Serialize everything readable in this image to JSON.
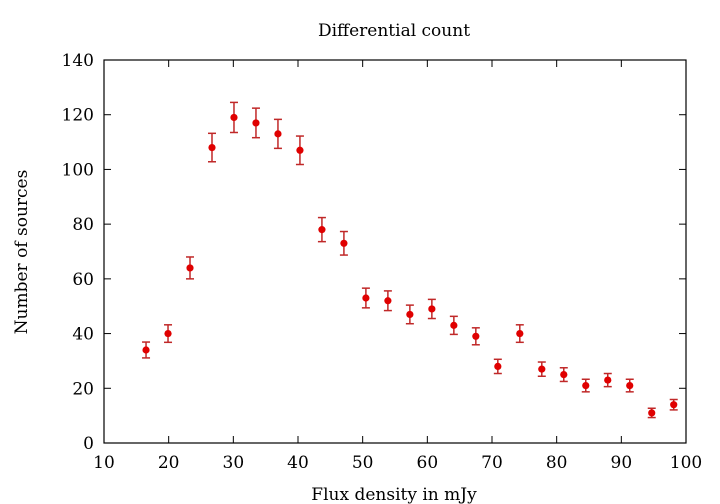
{
  "chart_data": {
    "type": "scatter",
    "title": "Differential count",
    "xlabel": "Flux density in mJy",
    "ylabel": "Number of sources",
    "xlim": [
      10,
      100
    ],
    "ylim": [
      0,
      140
    ],
    "xticks": [
      10,
      20,
      30,
      40,
      50,
      60,
      70,
      80,
      90,
      100
    ],
    "yticks": [
      0,
      20,
      40,
      60,
      80,
      100,
      120,
      140
    ],
    "grid": false,
    "legend": "none",
    "colors": {
      "point": "#e00000",
      "errorbar": "#c02828"
    },
    "x": [
      16.5,
      19.9,
      23.3,
      26.7,
      30.1,
      33.5,
      36.9,
      40.3,
      43.7,
      47.1,
      50.5,
      53.9,
      57.3,
      60.7,
      64.1,
      67.5,
      70.9,
      74.3,
      77.7,
      81.1,
      84.5,
      87.9,
      91.3,
      94.7,
      98.1
    ],
    "y": [
      34,
      40,
      64,
      108,
      119,
      117,
      113,
      107,
      78,
      73,
      53,
      52,
      47,
      49,
      43,
      39,
      28,
      40,
      27,
      25,
      21,
      23,
      21,
      11,
      14
    ],
    "yerr": [
      2.9,
      3.2,
      4.0,
      5.2,
      5.5,
      5.4,
      5.3,
      5.2,
      4.4,
      4.3,
      3.6,
      3.6,
      3.4,
      3.5,
      3.3,
      3.1,
      2.6,
      3.2,
      2.6,
      2.5,
      2.3,
      2.4,
      2.3,
      1.7,
      1.9
    ]
  }
}
